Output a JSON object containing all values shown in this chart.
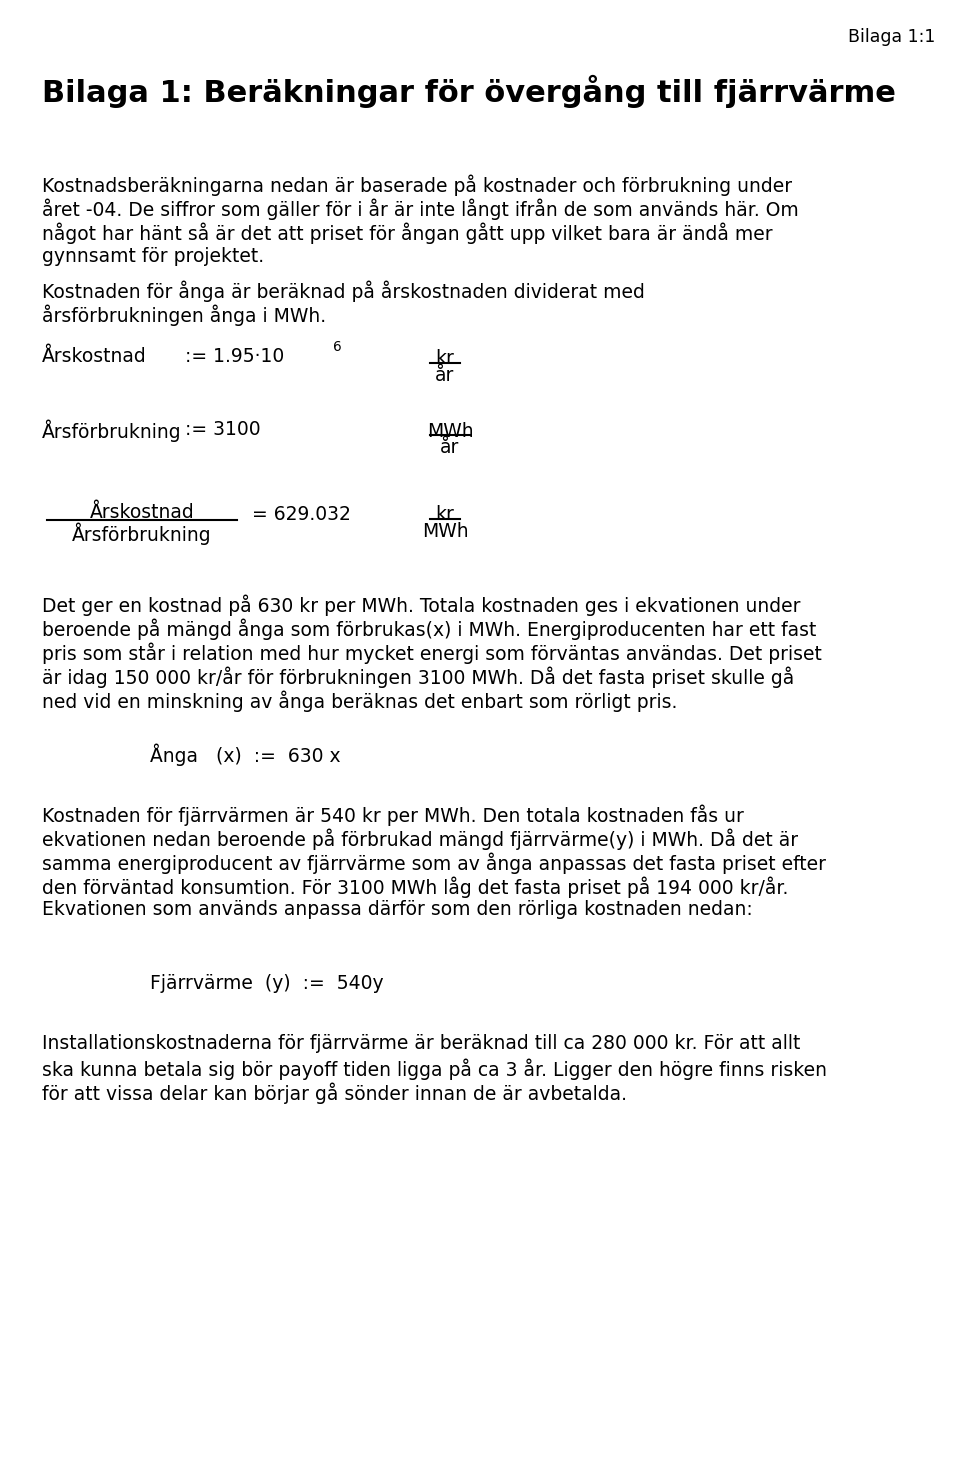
{
  "bg_color": "#ffffff",
  "text_color": "#000000",
  "header_label": "Bilaga 1:1",
  "title": "Bilaga 1: Beräkningar för övergång till fjärrvärme",
  "para1_lines": [
    "Kostnadsberäkningarna nedan är baserade på kostnader och förbrukning under",
    "året -04. De siffror som gäller för i år är inte långt ifrån de som används här. Om",
    "något har hänt så är det att priset för ångan gått upp vilket bara är ändå mer",
    "gynnsamt för projektet."
  ],
  "para2_lines": [
    "Kostnaden för ånga är beräknad på årskostnaden dividerat med",
    "årsförbrukningen ånga i MWh."
  ],
  "eq1_label": "Årskostnad",
  "eq1_assign": ":= 1.95·10",
  "eq1_exp": "6",
  "eq1_unit_num": "kr",
  "eq1_unit_den": "år",
  "eq2_label": "Årsförbrukning",
  "eq2_assign": ":= 3100",
  "eq2_unit_num": "MWh",
  "eq2_unit_den": "år",
  "eq3_num": "Årskostnad",
  "eq3_den": "Årsförbrukning",
  "eq3_result": "= 629.032",
  "eq3_unit_num": "kr",
  "eq3_unit_den": "MWh",
  "para3_lines": [
    "Det ger en kostnad på 630 kr per MWh. Totala kostnaden ges i ekvationen under",
    "beroende på mängd ånga som förbrukas(x) i MWh. Energiproducenten har ett fast",
    "pris som står i relation med hur mycket energi som förväntas användas. Det priset",
    "är idag 150 000 kr/år för förbrukningen 3100 MWh. Då det fasta priset skulle gå",
    "ned vid en minskning av ånga beräknas det enbart som rörligt pris."
  ],
  "eq4": "Ånga   (x)  :=  630 x",
  "para4_lines": [
    "Kostnaden för fjärrvärmen är 540 kr per MWh. Den totala kostnaden fås ur",
    "ekvationen nedan beroende på förbrukad mängd fjärrvärme(y) i MWh. Då det är",
    "samma energiproducent av fjärrvärme som av ånga anpassas det fasta priset efter",
    "den förväntad konsumtion. För 3100 MWh låg det fasta priset på 194 000 kr/år.",
    "Ekvationen som används anpassa därför som den rörliga kostnaden nedan:"
  ],
  "eq5": "Fjärrvärme  (y)  :=  540y",
  "para5_lines": [
    "Installationskostnaderna för fjärrvärme är beräknad till ca 280 000 kr. För att allt",
    "ska kunna betala sig bör payoff tiden ligga på ca 3 år. Ligger den högre finns risken",
    "för att vissa delar kan börjar gå sönder innan de är avbetalda."
  ]
}
